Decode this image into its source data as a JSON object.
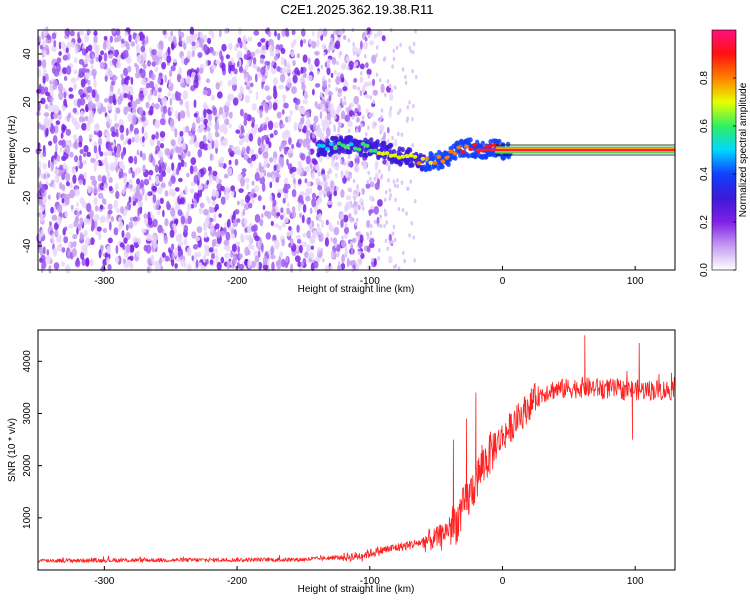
{
  "figure": {
    "title": "C2E1.2025.362.19.38.R11"
  },
  "chart_data": [
    {
      "type": "heatmap",
      "title": "",
      "xlabel": "Height of straight line (km)",
      "ylabel": "Frequency (Hz)",
      "xlim": [
        -350,
        130
      ],
      "ylim": [
        -50,
        50
      ],
      "xticks": [
        -300,
        -200,
        -100,
        0,
        100
      ],
      "yticks": [
        -40,
        -20,
        0,
        20,
        40
      ],
      "colorbar": {
        "label": "Normalized spectral amplitude",
        "range": [
          0,
          1
        ],
        "ticks": [
          0.0,
          0.2,
          0.4,
          0.6,
          0.8
        ],
        "tick_labels": [
          "0.0",
          "0.2",
          "0.4",
          "0.6",
          "0.8"
        ],
        "colormap": [
          "#ffffff",
          "#c69cf2",
          "#8020e8",
          "#3b1ad8",
          "#1040ff",
          "#00d8ff",
          "#30f060",
          "#e8ff00",
          "#ff8000",
          "#ff1010",
          "#ff1080"
        ]
      },
      "ridge": {
        "description_points_x": [
          -138,
          -120,
          -100,
          -80,
          -60,
          -45,
          -35,
          -25,
          -15,
          -5,
          0,
          10,
          130
        ],
        "description_points_y": [
          1,
          2,
          1,
          -2,
          -5,
          -4,
          0,
          1,
          0,
          1,
          0,
          0,
          0
        ]
      },
      "noise_region_x": [
        -350,
        -140
      ]
    },
    {
      "type": "line",
      "title": "",
      "xlabel": "Height of straight line (km)",
      "ylabel": "SNR (10 * v/v)",
      "xlim": [
        -350,
        130
      ],
      "ylim": [
        0,
        4600
      ],
      "xticks": [
        -300,
        -200,
        -100,
        0,
        100
      ],
      "yticks": [
        1000,
        2000,
        3000,
        4000
      ],
      "series": [
        {
          "name": "SNR",
          "color": "#ff2020",
          "trend_x": [
            -350,
            -150,
            -110,
            -90,
            -70,
            -50,
            -35,
            -25,
            -15,
            -5,
            5,
            15,
            25,
            35,
            60,
            100,
            130
          ],
          "trend_y": [
            180,
            200,
            260,
            380,
            480,
            600,
            900,
            1400,
            2000,
            2400,
            2700,
            3000,
            3300,
            3450,
            3500,
            3450,
            3450
          ],
          "spikes_x": [
            -37,
            -27,
            -20,
            62,
            98,
            103
          ],
          "spikes_y": [
            2500,
            2900,
            3400,
            4500,
            2500,
            4350
          ]
        }
      ]
    }
  ]
}
